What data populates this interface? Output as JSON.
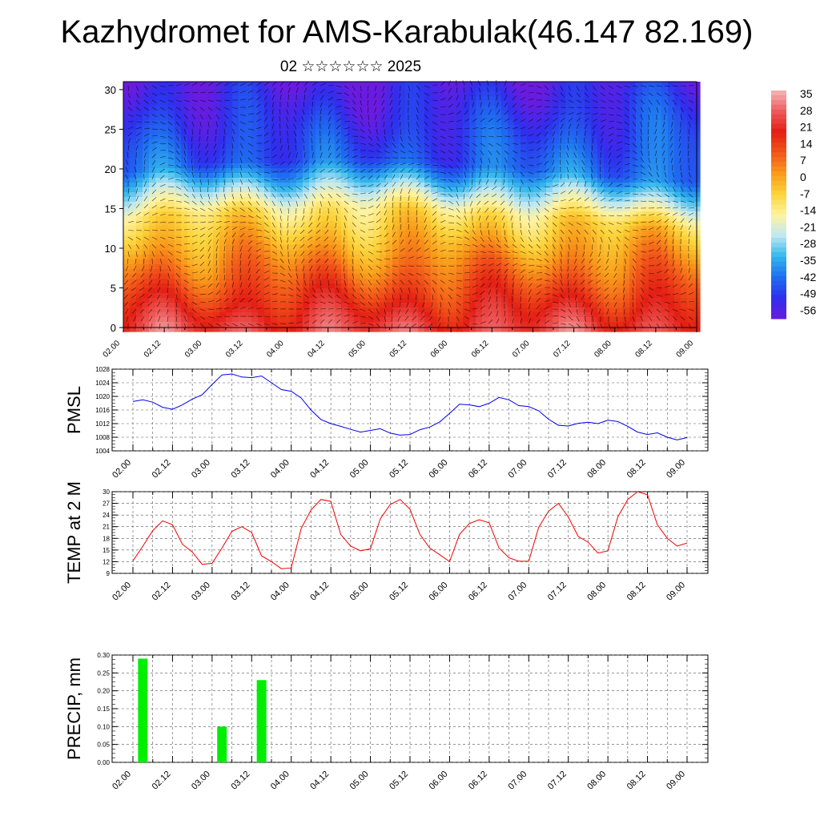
{
  "title": "Kazhydromet for AMS-Karabulak(46.147 82.169)",
  "subtitle": "02 ☆☆☆☆☆☆ 2025",
  "time_labels": [
    "02.00",
    "02.12",
    "03.00",
    "03.12",
    "04.00",
    "04.12",
    "05.00",
    "05.12",
    "06.00",
    "06.12",
    "07.00",
    "07.12",
    "08.00",
    "08.12",
    "09.00"
  ],
  "colors": {
    "pmsl_line": "#0000ee",
    "temp_line": "#ee0000",
    "precip_bar": "#00ee00"
  },
  "chart_data": [
    {
      "type": "heatmap",
      "name": "cross-section",
      "yticks": [
        0,
        5,
        10,
        15,
        20,
        25,
        30
      ],
      "ylim": [
        0,
        31
      ],
      "colorbar_labels": [
        "35",
        "28",
        "21",
        "14",
        "7",
        "0",
        "-7",
        "-14",
        "-21",
        "-28",
        "-35",
        "-42",
        "-49",
        "-56"
      ],
      "colorbar_range": [
        -63,
        42
      ],
      "colorbar_stops": [
        "#6a1be0",
        "#2f2fee",
        "#1e6ef0",
        "#33b7ee",
        "#bfe8f2",
        "#fff3a0",
        "#fcd43a",
        "#f99b1a",
        "#f2561a",
        "#e31e14",
        "#ee5a5a",
        "#f4b8b8"
      ],
      "note_vectors": "wind vectors overlay"
    },
    {
      "type": "line",
      "ylabel": "PMSL",
      "ylim": [
        1004,
        1028
      ],
      "yticks": [
        1004,
        1008,
        1012,
        1016,
        1020,
        1024,
        1028
      ],
      "x": [
        0,
        3,
        6,
        9,
        12,
        15,
        18,
        21,
        24,
        27,
        30,
        33,
        36,
        39,
        42,
        45,
        48,
        51,
        54,
        57,
        60,
        63,
        66,
        69,
        72,
        75,
        78,
        81,
        84,
        87,
        90,
        93,
        96,
        99,
        102,
        105,
        108,
        111,
        114,
        117,
        120,
        123,
        126,
        129,
        132,
        135,
        138,
        141,
        144,
        147,
        150,
        153,
        156,
        159,
        162,
        165,
        168
      ],
      "values": [
        1018.5,
        1019,
        1018.3,
        1016.8,
        1016.2,
        1017.5,
        1019.2,
        1020.5,
        1023.5,
        1026.3,
        1026.6,
        1025.7,
        1025.5,
        1026,
        1024,
        1022,
        1021.5,
        1019.5,
        1016,
        1013.2,
        1012,
        1011.2,
        1010.3,
        1009.5,
        1010,
        1010.5,
        1009.2,
        1008.6,
        1008.8,
        1010.2,
        1011,
        1012.5,
        1015,
        1017.7,
        1017.5,
        1017,
        1018,
        1019.7,
        1019,
        1017.3,
        1017,
        1015.8,
        1013.3,
        1011.5,
        1011.3,
        1012.1,
        1012.4,
        1012,
        1013,
        1012.6,
        1011.2,
        1009.5,
        1008.8,
        1009.3,
        1008,
        1007.2,
        1007.9
      ]
    },
    {
      "type": "line",
      "ylabel": "TEMP at 2 M",
      "ylim": [
        9,
        30
      ],
      "yticks": [
        9,
        12,
        15,
        18,
        21,
        24,
        27,
        30
      ],
      "x": [
        0,
        3,
        6,
        9,
        12,
        15,
        18,
        21,
        24,
        27,
        30,
        33,
        36,
        39,
        42,
        45,
        48,
        51,
        54,
        57,
        60,
        63,
        66,
        69,
        72,
        75,
        78,
        81,
        84,
        87,
        90,
        93,
        96,
        99,
        102,
        105,
        108,
        111,
        114,
        117,
        120,
        123,
        126,
        129,
        132,
        135,
        138,
        141,
        144,
        147,
        150,
        153,
        156,
        159,
        162,
        165,
        168
      ],
      "values": [
        12.2,
        16,
        20,
        22.5,
        21.5,
        16.5,
        14.5,
        11.3,
        11.6,
        15.5,
        19.8,
        21,
        19.5,
        13.5,
        12,
        10.2,
        10.4,
        20.5,
        25.3,
        28,
        27.5,
        19,
        16,
        14.8,
        15.3,
        23,
        26.7,
        28,
        25.5,
        19,
        15.5,
        13.8,
        12,
        19,
        21.8,
        22.8,
        22,
        15.5,
        13,
        12.1,
        12.1,
        20.8,
        25,
        27,
        23.5,
        18.5,
        17,
        14.2,
        14.8,
        23.5,
        28,
        30,
        29.2,
        21.5,
        18,
        16,
        16.8
      ]
    },
    {
      "type": "bar",
      "ylabel": "PRECIP, mm",
      "ylim": [
        0,
        0.3
      ],
      "yticks": [
        "0.00",
        "0.05",
        "0.10",
        "0.15",
        "0.20",
        "0.25",
        "0.30"
      ],
      "x": [
        3,
        27,
        39
      ],
      "values": [
        0.29,
        0.1,
        0.23
      ]
    }
  ]
}
